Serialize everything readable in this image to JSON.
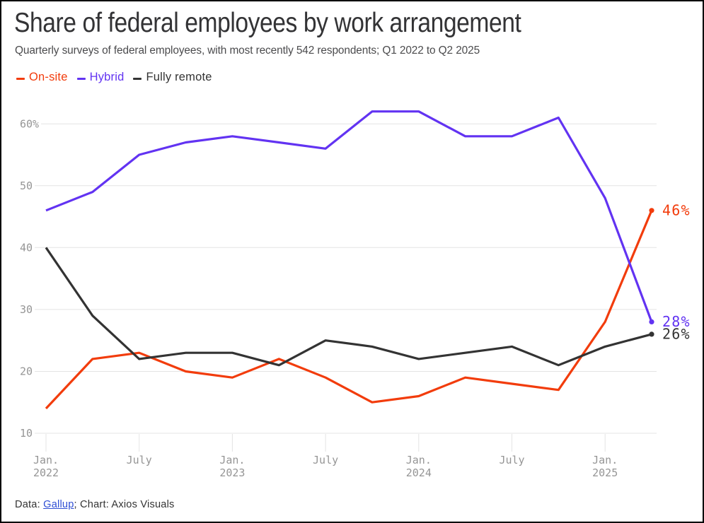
{
  "header": {
    "title": "Share of federal employees by work arrangement",
    "subtitle": "Quarterly surveys of federal employees, with most recently 542 respondents; Q1 2022 to Q2 2025"
  },
  "legend": {
    "items": [
      {
        "label": "On-site",
        "color": "#f23c0c"
      },
      {
        "label": "Hybrid",
        "color": "#6233f2"
      },
      {
        "label": "Fully remote",
        "color": "#333333"
      }
    ]
  },
  "chart_data": {
    "type": "line",
    "x": [
      "Q1 2022",
      "Q2 2022",
      "Q3 2022",
      "Q4 2022",
      "Q1 2023",
      "Q2 2023",
      "Q3 2023",
      "Q4 2023",
      "Q1 2024",
      "Q2 2024",
      "Q3 2024",
      "Q4 2024",
      "Q1 2025",
      "Q2 2025"
    ],
    "series": [
      {
        "name": "On-site",
        "color": "#f23c0c",
        "values": [
          14,
          22,
          23,
          20,
          19,
          22,
          19,
          15,
          16,
          19,
          18,
          17,
          28,
          46
        ],
        "end_label": "46%"
      },
      {
        "name": "Hybrid",
        "color": "#6233f2",
        "values": [
          46,
          49,
          55,
          57,
          58,
          57,
          56,
          62,
          62,
          58,
          58,
          61,
          48,
          28
        ],
        "end_label": "28%"
      },
      {
        "name": "Fully remote",
        "color": "#333333",
        "values": [
          40,
          29,
          22,
          23,
          23,
          21,
          25,
          24,
          22,
          23,
          24,
          21,
          24,
          26
        ],
        "end_label": "26%"
      }
    ],
    "ylabel": "",
    "xlabel": "",
    "ylim": [
      10,
      64
    ],
    "grid": true,
    "legend_position": "top",
    "y_ticks": [
      {
        "value": 10,
        "label": "10"
      },
      {
        "value": 20,
        "label": "20"
      },
      {
        "value": 30,
        "label": "30"
      },
      {
        "value": 40,
        "label": "40"
      },
      {
        "value": 50,
        "label": "50"
      },
      {
        "value": 60,
        "label": "60%"
      }
    ],
    "x_ticks": [
      {
        "index": 0,
        "line1": "Jan.",
        "line2": "2022"
      },
      {
        "index": 2,
        "line1": "July",
        "line2": ""
      },
      {
        "index": 4,
        "line1": "Jan.",
        "line2": "2023"
      },
      {
        "index": 6,
        "line1": "July",
        "line2": ""
      },
      {
        "index": 8,
        "line1": "Jan.",
        "line2": "2024"
      },
      {
        "index": 10,
        "line1": "July",
        "line2": ""
      },
      {
        "index": 12,
        "line1": "Jan.",
        "line2": "2025"
      }
    ]
  },
  "footer": {
    "data_prefix": "Data: ",
    "source_label": "Gallup",
    "credit": "; Chart: Axios Visuals"
  },
  "colors": {
    "grid": "#e4e4e4",
    "axis_label": "#959595",
    "title": "#333335",
    "subtitle": "#4b4b4d",
    "link": "#2f4ed4",
    "border": "#000000",
    "background": "#ffffff"
  }
}
